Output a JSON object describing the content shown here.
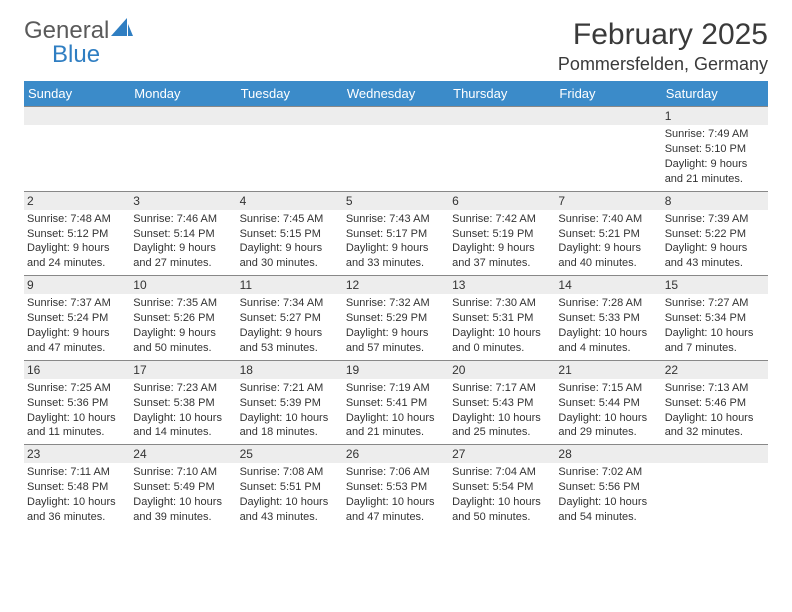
{
  "logo": {
    "word1": "General",
    "word2": "Blue",
    "shape_color": "#2f7ec2",
    "text_color": "#5a5a5a"
  },
  "title": "February 2025",
  "location": "Pommersfelden, Germany",
  "header_bg": "#3b8bc9",
  "header_text_color": "#ffffff",
  "daynum_bg": "#ededed",
  "border_color": "#888888",
  "columns": [
    "Sunday",
    "Monday",
    "Tuesday",
    "Wednesday",
    "Thursday",
    "Friday",
    "Saturday"
  ],
  "weeks": [
    [
      null,
      null,
      null,
      null,
      null,
      null,
      {
        "n": "1",
        "sr": "7:49 AM",
        "ss": "5:10 PM",
        "dl": "9 hours and 21 minutes."
      }
    ],
    [
      {
        "n": "2",
        "sr": "7:48 AM",
        "ss": "5:12 PM",
        "dl": "9 hours and 24 minutes."
      },
      {
        "n": "3",
        "sr": "7:46 AM",
        "ss": "5:14 PM",
        "dl": "9 hours and 27 minutes."
      },
      {
        "n": "4",
        "sr": "7:45 AM",
        "ss": "5:15 PM",
        "dl": "9 hours and 30 minutes."
      },
      {
        "n": "5",
        "sr": "7:43 AM",
        "ss": "5:17 PM",
        "dl": "9 hours and 33 minutes."
      },
      {
        "n": "6",
        "sr": "7:42 AM",
        "ss": "5:19 PM",
        "dl": "9 hours and 37 minutes."
      },
      {
        "n": "7",
        "sr": "7:40 AM",
        "ss": "5:21 PM",
        "dl": "9 hours and 40 minutes."
      },
      {
        "n": "8",
        "sr": "7:39 AM",
        "ss": "5:22 PM",
        "dl": "9 hours and 43 minutes."
      }
    ],
    [
      {
        "n": "9",
        "sr": "7:37 AM",
        "ss": "5:24 PM",
        "dl": "9 hours and 47 minutes."
      },
      {
        "n": "10",
        "sr": "7:35 AM",
        "ss": "5:26 PM",
        "dl": "9 hours and 50 minutes."
      },
      {
        "n": "11",
        "sr": "7:34 AM",
        "ss": "5:27 PM",
        "dl": "9 hours and 53 minutes."
      },
      {
        "n": "12",
        "sr": "7:32 AM",
        "ss": "5:29 PM",
        "dl": "9 hours and 57 minutes."
      },
      {
        "n": "13",
        "sr": "7:30 AM",
        "ss": "5:31 PM",
        "dl": "10 hours and 0 minutes."
      },
      {
        "n": "14",
        "sr": "7:28 AM",
        "ss": "5:33 PM",
        "dl": "10 hours and 4 minutes."
      },
      {
        "n": "15",
        "sr": "7:27 AM",
        "ss": "5:34 PM",
        "dl": "10 hours and 7 minutes."
      }
    ],
    [
      {
        "n": "16",
        "sr": "7:25 AM",
        "ss": "5:36 PM",
        "dl": "10 hours and 11 minutes."
      },
      {
        "n": "17",
        "sr": "7:23 AM",
        "ss": "5:38 PM",
        "dl": "10 hours and 14 minutes."
      },
      {
        "n": "18",
        "sr": "7:21 AM",
        "ss": "5:39 PM",
        "dl": "10 hours and 18 minutes."
      },
      {
        "n": "19",
        "sr": "7:19 AM",
        "ss": "5:41 PM",
        "dl": "10 hours and 21 minutes."
      },
      {
        "n": "20",
        "sr": "7:17 AM",
        "ss": "5:43 PM",
        "dl": "10 hours and 25 minutes."
      },
      {
        "n": "21",
        "sr": "7:15 AM",
        "ss": "5:44 PM",
        "dl": "10 hours and 29 minutes."
      },
      {
        "n": "22",
        "sr": "7:13 AM",
        "ss": "5:46 PM",
        "dl": "10 hours and 32 minutes."
      }
    ],
    [
      {
        "n": "23",
        "sr": "7:11 AM",
        "ss": "5:48 PM",
        "dl": "10 hours and 36 minutes."
      },
      {
        "n": "24",
        "sr": "7:10 AM",
        "ss": "5:49 PM",
        "dl": "10 hours and 39 minutes."
      },
      {
        "n": "25",
        "sr": "7:08 AM",
        "ss": "5:51 PM",
        "dl": "10 hours and 43 minutes."
      },
      {
        "n": "26",
        "sr": "7:06 AM",
        "ss": "5:53 PM",
        "dl": "10 hours and 47 minutes."
      },
      {
        "n": "27",
        "sr": "7:04 AM",
        "ss": "5:54 PM",
        "dl": "10 hours and 50 minutes."
      },
      {
        "n": "28",
        "sr": "7:02 AM",
        "ss": "5:56 PM",
        "dl": "10 hours and 54 minutes."
      },
      null
    ]
  ],
  "labels": {
    "sunrise": "Sunrise:",
    "sunset": "Sunset:",
    "daylight": "Daylight:"
  }
}
